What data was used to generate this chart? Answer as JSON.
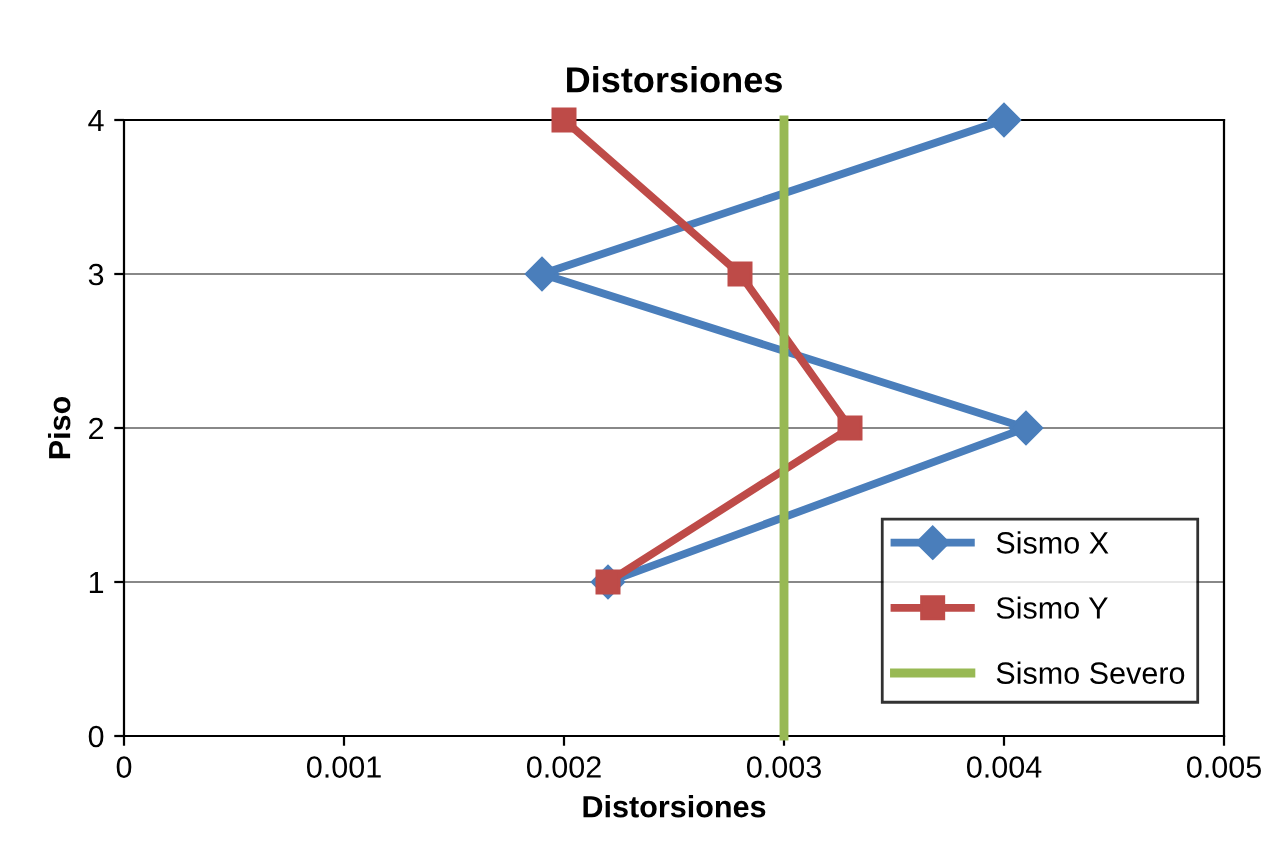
{
  "chart_data": {
    "type": "line",
    "title": "Distorsiones",
    "xlabel": "Distorsiones",
    "ylabel": "Piso",
    "series": [
      {
        "name": "Sismo X",
        "color": "#4a7ebb",
        "x": [
          0.004,
          0.0019,
          0.0041,
          0.0022
        ],
        "values": [
          4,
          3,
          2,
          1
        ],
        "marker": "diamond"
      },
      {
        "name": "Sismo Y",
        "color": "#be4b48",
        "x": [
          0.002,
          0.0028,
          0.0033,
          0.0022
        ],
        "values": [
          4,
          3,
          2,
          1
        ],
        "marker": "square"
      },
      {
        "name": "Sismo Severo",
        "color": "#98b954",
        "x": [
          0.003,
          0.003
        ],
        "values": [
          0,
          4
        ],
        "marker": "none"
      }
    ],
    "xlim": [
      0,
      0.005
    ],
    "xticks": [
      0,
      0.001,
      0.002,
      0.003,
      0.004,
      0.005
    ],
    "ylim": [
      0,
      4
    ],
    "yticks": [
      0,
      1,
      2,
      3,
      4
    ],
    "grid": "y",
    "legend": "bottom right",
    "line_style": "solid"
  }
}
